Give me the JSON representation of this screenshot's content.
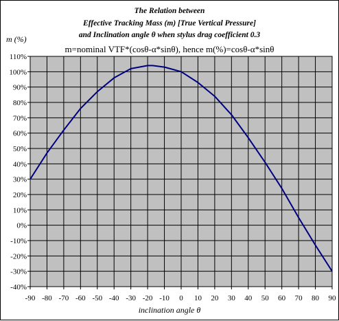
{
  "chart_data": {
    "type": "line",
    "title_lines": [
      "The Relation between",
      "Effective Tracking Mass (m) [True Vertical Pressure]",
      "and  Inclination angle θ  when stylus drag coefficient 0.3"
    ],
    "subtitle": "m=nominal VTF*(cosθ-α*sinθ), hence m(%)=cosθ-α*sinθ",
    "ylabel": "m (%)",
    "xlabel": "inclination angle θ",
    "xlim": [
      -90,
      90
    ],
    "ylim": [
      -40,
      110
    ],
    "x_ticks": [
      -90,
      -80,
      -70,
      -60,
      -50,
      -40,
      -30,
      -20,
      -10,
      0,
      10,
      20,
      30,
      40,
      50,
      60,
      70,
      80,
      90
    ],
    "y_ticks": [
      110,
      100,
      90,
      80,
      70,
      60,
      50,
      40,
      30,
      20,
      10,
      0,
      -10,
      -20,
      -30,
      -40
    ],
    "y_tick_suffix": "%",
    "grid": true,
    "plot_background": "#c0c0c0",
    "line_color": "#000080",
    "series": [
      {
        "x": [
          -90,
          -80,
          -70,
          -60,
          -50,
          -40,
          -30,
          -20,
          -17,
          -10,
          0,
          10,
          20,
          30,
          40,
          50,
          60,
          70,
          80,
          90
        ],
        "values": [
          30,
          47,
          62,
          76,
          87,
          96,
          102,
          104,
          104,
          103,
          100,
          93,
          84,
          72,
          57,
          41,
          24,
          5,
          -13,
          -30
        ]
      }
    ]
  }
}
